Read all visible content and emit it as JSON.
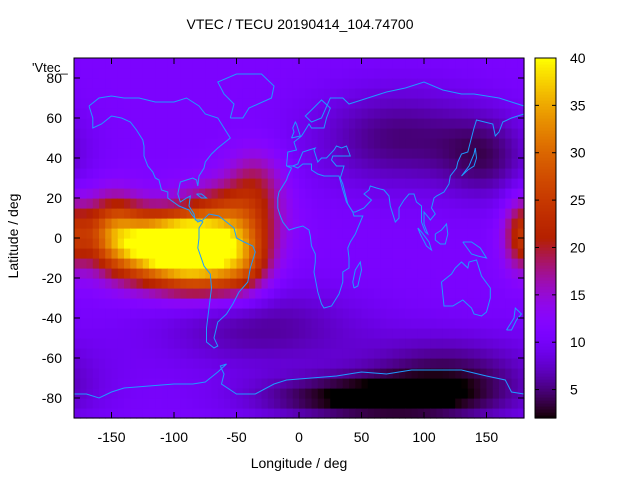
{
  "chart_data": {
    "type": "heatmap",
    "title": "VTEC / TECU 20190414_104.74700",
    "xlabel": "Longitude / deg",
    "ylabel": "Latitude / deg",
    "legend_key": "'Vtec_",
    "xlim": [
      -180,
      180
    ],
    "ylim": [
      -90,
      90
    ],
    "xticks": [
      -150,
      -100,
      -50,
      0,
      50,
      100,
      150
    ],
    "yticks": [
      -80,
      -60,
      -40,
      -20,
      0,
      20,
      40,
      60,
      80
    ],
    "colorbar": {
      "ticks": [
        5,
        10,
        15,
        20,
        25,
        30,
        35,
        40
      ],
      "range": [
        2,
        40
      ]
    },
    "field": {
      "background_tecu": 11,
      "features": [
        {
          "lon": -92,
          "lat": -2,
          "tecu": 38,
          "spread_lon": 22,
          "spread_lat": 8
        },
        {
          "lon": -125,
          "lat": -4,
          "tecu": 31,
          "spread_lon": 24,
          "spread_lat": 12
        },
        {
          "lon": -80,
          "lat": -15,
          "tecu": 30,
          "spread_lon": 26,
          "spread_lat": 10
        },
        {
          "lon": -60,
          "lat": 8,
          "tecu": 27,
          "spread_lon": 26,
          "spread_lat": 12
        },
        {
          "lon": -150,
          "lat": 5,
          "tecu": 24,
          "spread_lon": 16,
          "spread_lat": 12
        },
        {
          "lon": -45,
          "lat": -10,
          "tecu": 22,
          "spread_lon": 16,
          "spread_lat": 12
        },
        {
          "lon": -35,
          "lat": 28,
          "tecu": 18,
          "spread_lon": 16,
          "spread_lat": 12
        },
        {
          "lon": 178,
          "lat": 2,
          "tecu": 22,
          "spread_lon": 10,
          "spread_lat": 12
        },
        {
          "lon": 50,
          "lat": -80,
          "tecu": 2,
          "spread_lon": 60,
          "spread_lat": 8
        },
        {
          "lon": 120,
          "lat": -70,
          "tecu": 4,
          "spread_lon": 50,
          "spread_lat": 15
        },
        {
          "lon": 80,
          "lat": 50,
          "tecu": 5,
          "spread_lon": 50,
          "spread_lat": 18
        },
        {
          "lon": 150,
          "lat": 40,
          "tecu": 6,
          "spread_lon": 25,
          "spread_lat": 15
        },
        {
          "lon": -30,
          "lat": -45,
          "tecu": 6,
          "spread_lon": 60,
          "spread_lat": 15
        }
      ]
    },
    "overlay": "coastlines",
    "grid": false
  }
}
